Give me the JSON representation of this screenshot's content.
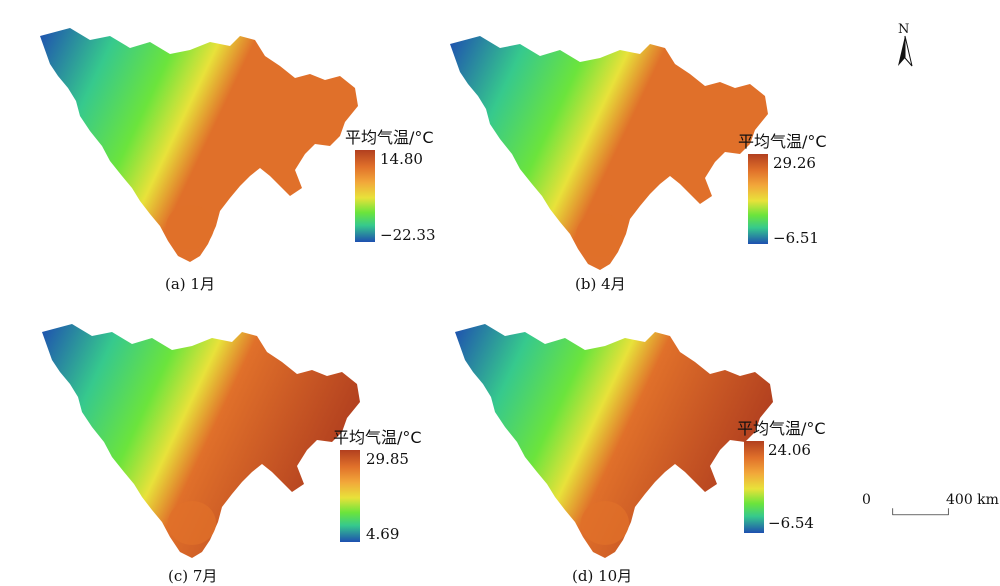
{
  "panels": [
    {
      "caption": "(a) 1月",
      "legend_title": "平均气温/°C",
      "max": "14.80",
      "min": "−22.33"
    },
    {
      "caption": "(b) 4月",
      "legend_title": "平均气温/°C",
      "max": "29.26",
      "min": "−6.51"
    },
    {
      "caption": "(c) 7月",
      "legend_title": "平均气温/°C",
      "max": "29.85",
      "min": "4.69"
    },
    {
      "caption": "(d) 10月",
      "legend_title": "平均气温/°C",
      "max": "24.06",
      "min": "−6.54"
    }
  ],
  "north": "N",
  "scale": {
    "start": "0",
    "end": "400 km"
  },
  "colors": {
    "cold": "#1e4fb0",
    "cool": "#36c98d",
    "mild": "#6be43c",
    "warm": "#e8e23a",
    "hot": "#e0702a",
    "hottest": "#b2401f"
  }
}
